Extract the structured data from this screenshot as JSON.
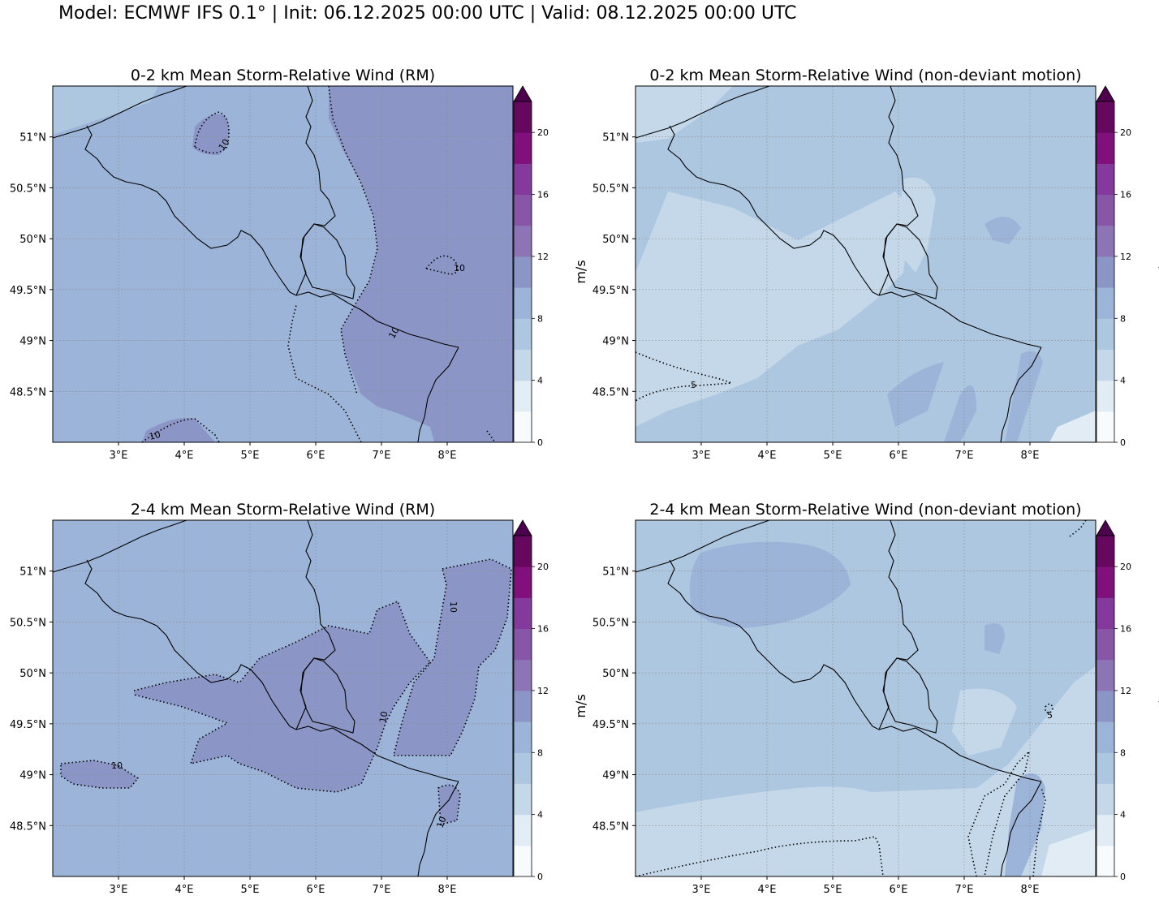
{
  "suptitle": "Model: ECMWF IFS 0.1° | Init: 06.12.2025 00:00 UTC | Valid: 08.12.2025 00:00 UTC",
  "colorbar": {
    "unit": "m/s",
    "ticks": [
      "0",
      "4",
      "8",
      "12",
      "16",
      "20"
    ],
    "levels": [
      0,
      2,
      4,
      6,
      8,
      10,
      12,
      14,
      16,
      18,
      20,
      22
    ],
    "colors": [
      "#f7fbfd",
      "#e1ecf4",
      "#c5d8e9",
      "#aec7e0",
      "#9bb4d8",
      "#8c96c6",
      "#8c74b5",
      "#8856a7",
      "#84399c",
      "#810f7c",
      "#66085e",
      "#4d004b"
    ]
  },
  "axes": {
    "lon_ticks": [
      "3°E",
      "4°E",
      "5°E",
      "6°E",
      "7°E",
      "8°E"
    ],
    "lat_ticks": [
      "51°N",
      "50.5°N",
      "50°N",
      "49.5°N",
      "49°N",
      "48.5°N"
    ],
    "lon_range": [
      2.0,
      9.0
    ],
    "lat_range": [
      48.0,
      51.5
    ]
  },
  "panels": [
    {
      "title": "0-2 km Mean Storm-Relative Wind (RM)",
      "contour_labels": [
        "10",
        "10",
        "10",
        "10"
      ],
      "west_color": "#9bb4d8",
      "east_color": "#8c96c6",
      "north_color": "#aec7e0"
    },
    {
      "title": "0-2 km Mean Storm-Relative Wind (non-deviant motion)",
      "contour_labels": [
        "5"
      ],
      "west_color": "#aec7e0",
      "east_color": "#c5d8e9",
      "north_color": "#aec7e0"
    },
    {
      "title": "2-4 km Mean Storm-Relative Wind (RM)",
      "contour_labels": [
        "10",
        "10",
        "10",
        "10"
      ],
      "west_color": "#9bb4d8",
      "east_color": "#8c96c6",
      "north_color": "#9bb4d8"
    },
    {
      "title": "2-4 km Mean Storm-Relative Wind (non-deviant motion)",
      "contour_labels": [
        "5"
      ],
      "west_color": "#aec7e0",
      "east_color": "#c5d8e9",
      "north_color": "#aec7e0"
    }
  ]
}
